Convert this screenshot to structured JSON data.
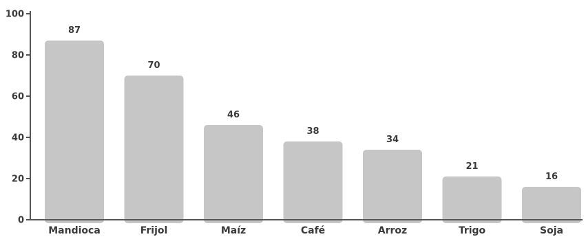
{
  "chart_data": {
    "type": "bar",
    "categories": [
      "Mandioca",
      "Frijol",
      "Maíz",
      "Café",
      "Arroz",
      "Trigo",
      "Soja"
    ],
    "values": [
      87,
      70,
      46,
      38,
      34,
      21,
      16
    ],
    "title": "",
    "xlabel": "",
    "ylabel": "",
    "ylim": [
      0,
      100
    ],
    "yticks": [
      0,
      20,
      40,
      60,
      80,
      100
    ],
    "grid": false,
    "legend": "none",
    "data_labels": true,
    "colors": {
      "bar": "#c6c6c6",
      "axis": "#555555",
      "text": "#3a3a3a"
    }
  }
}
